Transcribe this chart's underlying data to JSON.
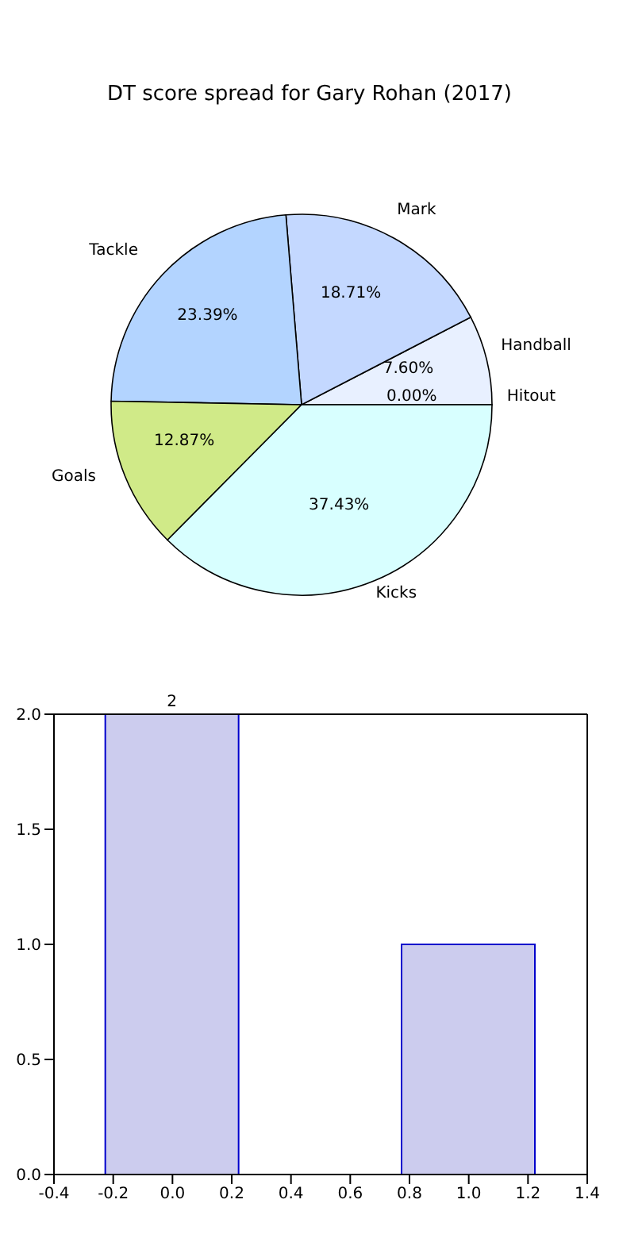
{
  "chart_data": [
    {
      "type": "pie",
      "title": "DT score spread for Gary Rohan (2017)",
      "categories": [
        "Handball",
        "Mark",
        "Tackle",
        "Goals",
        "Kicks",
        "Hitout"
      ],
      "values": [
        7.6,
        18.71,
        23.39,
        12.87,
        37.43,
        0.0
      ],
      "colors": [
        "#e8f0ff",
        "#c4d8ff",
        "#b3d4ff",
        "#d0ea88",
        "#d8ffff",
        "#f4f8ff"
      ],
      "value_labels": [
        "7.60%",
        "18.71%",
        "23.39%",
        "12.87%",
        "37.43%",
        "0.00%"
      ],
      "legend": false
    },
    {
      "type": "bar",
      "x": [
        0,
        1
      ],
      "values": [
        2,
        1
      ],
      "color": "#ccccee",
      "value_labels": [
        "2",
        null
      ],
      "xlim": [
        -0.4,
        1.4
      ],
      "xticks": [
        -0.4,
        -0.2,
        {
          "value": 0,
          "label": "0.0"
        },
        0.2,
        0.4,
        0.6,
        0.8,
        {
          "value": 1,
          "label": "1.0"
        },
        1.2,
        1.4
      ],
      "ylim": [
        0,
        2
      ],
      "yticks": [
        {
          "value": 0,
          "label": "0.0"
        },
        0.5,
        {
          "value": 1,
          "label": "1.0"
        },
        1.5,
        {
          "value": 2,
          "label": "2.0"
        }
      ],
      "grid": false,
      "legend": false
    }
  ]
}
